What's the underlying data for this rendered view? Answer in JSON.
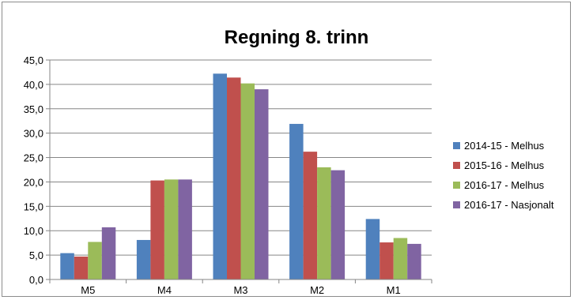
{
  "chart_data": {
    "type": "bar",
    "title": "Regning 8. trinn",
    "categories": [
      "M5",
      "M4",
      "M3",
      "M2",
      "M1"
    ],
    "series": [
      {
        "name": "2014-15 - Melhus",
        "color": "#4f81bd",
        "values": [
          5.4,
          8.1,
          42.2,
          31.9,
          12.4
        ]
      },
      {
        "name": "2015-16 - Melhus",
        "color": "#c0504d",
        "values": [
          4.7,
          20.3,
          41.4,
          26.2,
          7.6
        ]
      },
      {
        "name": "2016-17 - Melhus",
        "color": "#9bbb59",
        "values": [
          7.7,
          20.5,
          40.2,
          23.0,
          8.5
        ]
      },
      {
        "name": "2016-17 - Nasjonalt",
        "color": "#8064a2",
        "values": [
          10.7,
          20.5,
          39.0,
          22.4,
          7.3
        ]
      }
    ],
    "yticks": [
      "0,0",
      "5,0",
      "10,0",
      "15,0",
      "20,0",
      "25,0",
      "30,0",
      "35,0",
      "40,0",
      "45,0"
    ],
    "ylim": [
      0,
      45
    ],
    "grid": true,
    "legend_position": "right"
  }
}
